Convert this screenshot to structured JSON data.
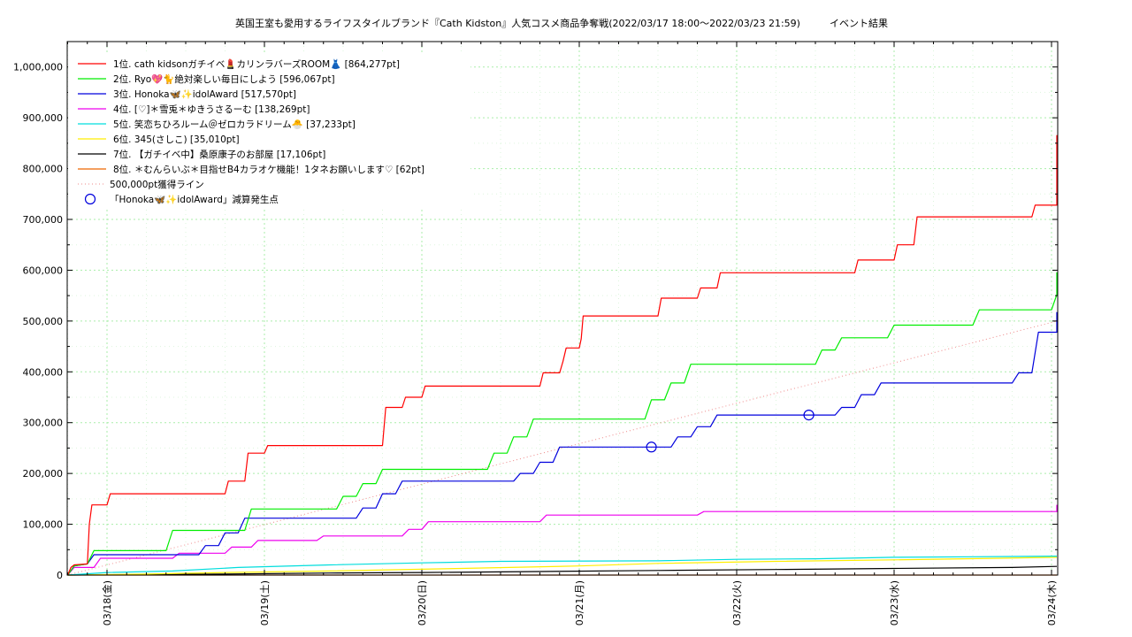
{
  "chart_data": {
    "type": "line",
    "title": "英国王室も愛用するライフスタイルブランド『Cath Kidston』人気コスメ商品争奪戦(2022/03/17 18:00～2022/03/23 21:59)　　　イベント結果",
    "xlabel": "",
    "ylabel": "",
    "x_unit": "hours since 2022/03/17 18:00",
    "xlim": [
      0,
      150
    ],
    "ylim": [
      0,
      1050000
    ],
    "grid": true,
    "legend_position": "top-left",
    "x_ticks": [
      {
        "x": 6,
        "label": "03/18(金)"
      },
      {
        "x": 30,
        "label": "03/19(土)"
      },
      {
        "x": 54,
        "label": "03/20(日)"
      },
      {
        "x": 78,
        "label": "03/21(月)"
      },
      {
        "x": 102,
        "label": "03/22(火)"
      },
      {
        "x": 126,
        "label": "03/23(水)"
      },
      {
        "x": 150,
        "label": "03/24(木)"
      }
    ],
    "y_ticks": [
      {
        "y": 0,
        "label": "0"
      },
      {
        "y": 100000,
        "label": "100,000"
      },
      {
        "y": 200000,
        "label": "200,000"
      },
      {
        "y": 300000,
        "label": "300,000"
      },
      {
        "y": 400000,
        "label": "400,000"
      },
      {
        "y": 500000,
        "label": "500,000"
      },
      {
        "y": 600000,
        "label": "600,000"
      },
      {
        "y": 700000,
        "label": "700,000"
      },
      {
        "y": 800000,
        "label": "800,000"
      },
      {
        "y": 900000,
        "label": "900,000"
      },
      {
        "y": 1000000,
        "label": "1,000,000"
      }
    ],
    "series": [
      {
        "name": "1位. cath kidsonガチイベ💄カリンラバーズROOM👗 [864,277pt]",
        "color": "#ff0000",
        "points": [
          [
            0,
            0
          ],
          [
            0.5,
            15000
          ],
          [
            1,
            20000
          ],
          [
            3,
            22000
          ],
          [
            3.3,
            100000
          ],
          [
            3.7,
            138000
          ],
          [
            6,
            138000
          ],
          [
            6.5,
            160000
          ],
          [
            24,
            160000
          ],
          [
            24.5,
            185000
          ],
          [
            27,
            185000
          ],
          [
            27.5,
            240000
          ],
          [
            30,
            240000
          ],
          [
            30.5,
            255000
          ],
          [
            48,
            255000
          ],
          [
            48.5,
            330000
          ],
          [
            51,
            330000
          ],
          [
            51.5,
            350000
          ],
          [
            54,
            350000
          ],
          [
            54.5,
            372000
          ],
          [
            72,
            372000
          ],
          [
            72.5,
            398000
          ],
          [
            75,
            398000
          ],
          [
            75.5,
            420000
          ],
          [
            76,
            447000
          ],
          [
            78,
            447000
          ],
          [
            78.3,
            465000
          ],
          [
            78.6,
            510000
          ],
          [
            90,
            510000
          ],
          [
            90.5,
            545000
          ],
          [
            96,
            545000
          ],
          [
            96.5,
            565000
          ],
          [
            99,
            565000
          ],
          [
            99.5,
            595000
          ],
          [
            120,
            595000
          ],
          [
            120.5,
            620000
          ],
          [
            126,
            620000
          ],
          [
            126.5,
            650000
          ],
          [
            129,
            650000
          ],
          [
            129.5,
            705000
          ],
          [
            147,
            705000
          ],
          [
            147.5,
            728000
          ],
          [
            152,
            728000
          ],
          [
            152.5,
            752000
          ],
          [
            156,
            752000
          ],
          [
            156.5,
            810000
          ],
          [
            157,
            865000
          ],
          [
            159,
            864277
          ]
        ]
      },
      {
        "name": "2位. Ryo💖🐈絶対楽しい毎日にしよう [596,067pt]",
        "color": "#00ee00",
        "points": [
          [
            0,
            0
          ],
          [
            1,
            18000
          ],
          [
            3,
            22000
          ],
          [
            4,
            48000
          ],
          [
            15,
            48000
          ],
          [
            16,
            88000
          ],
          [
            27,
            88000
          ],
          [
            28,
            130000
          ],
          [
            41,
            130000
          ],
          [
            42,
            155000
          ],
          [
            44,
            155000
          ],
          [
            45,
            180000
          ],
          [
            47,
            180000
          ],
          [
            48,
            208000
          ],
          [
            64,
            208000
          ],
          [
            65,
            240000
          ],
          [
            67,
            240000
          ],
          [
            68,
            272000
          ],
          [
            70,
            272000
          ],
          [
            71,
            307000
          ],
          [
            88,
            307000
          ],
          [
            89,
            345000
          ],
          [
            91,
            345000
          ],
          [
            92,
            378000
          ],
          [
            94,
            378000
          ],
          [
            95,
            415000
          ],
          [
            114,
            415000
          ],
          [
            115,
            443000
          ],
          [
            117,
            443000
          ],
          [
            118,
            467000
          ],
          [
            125,
            467000
          ],
          [
            126,
            492000
          ],
          [
            138,
            492000
          ],
          [
            139,
            522000
          ],
          [
            150,
            522000
          ],
          [
            151,
            552000
          ],
          [
            154,
            552000
          ],
          [
            155,
            596067
          ],
          [
            159,
            596067
          ]
        ]
      },
      {
        "name": "3位. Honoka🦋✨idolAward [517,570pt]",
        "color": "#0000dd",
        "points": [
          [
            0,
            0
          ],
          [
            1,
            18000
          ],
          [
            3,
            22000
          ],
          [
            4,
            40000
          ],
          [
            20,
            40000
          ],
          [
            21,
            58000
          ],
          [
            23,
            58000
          ],
          [
            24,
            83000
          ],
          [
            26,
            83000
          ],
          [
            27,
            112000
          ],
          [
            44,
            112000
          ],
          [
            45,
            132000
          ],
          [
            47,
            132000
          ],
          [
            48,
            160000
          ],
          [
            50,
            160000
          ],
          [
            51,
            185000
          ],
          [
            68,
            185000
          ],
          [
            69,
            200000
          ],
          [
            71,
            200000
          ],
          [
            72,
            222000
          ],
          [
            74,
            222000
          ],
          [
            75,
            252000
          ],
          [
            92,
            252000
          ],
          [
            93,
            272000
          ],
          [
            95,
            272000
          ],
          [
            96,
            292000
          ],
          [
            98,
            292000
          ],
          [
            99,
            315000
          ],
          [
            117,
            315000
          ],
          [
            118,
            330000
          ],
          [
            120,
            330000
          ],
          [
            121,
            355000
          ],
          [
            123,
            355000
          ],
          [
            124,
            378000
          ],
          [
            144,
            378000
          ],
          [
            145,
            398000
          ],
          [
            147,
            398000
          ],
          [
            148,
            478000
          ],
          [
            151,
            478000
          ],
          [
            152,
            517570
          ],
          [
            159,
            517570
          ]
        ]
      },
      {
        "name": "4位. [♡]＊雪兎＊ゆきうさるーむ [138,269pt]",
        "color": "#ee00ee",
        "points": [
          [
            0,
            0
          ],
          [
            1,
            15000
          ],
          [
            4,
            15000
          ],
          [
            5,
            33000
          ],
          [
            16,
            33000
          ],
          [
            17,
            43000
          ],
          [
            24,
            43000
          ],
          [
            25,
            55000
          ],
          [
            28,
            55000
          ],
          [
            29,
            68000
          ],
          [
            38,
            68000
          ],
          [
            39,
            77000
          ],
          [
            51,
            77000
          ],
          [
            52,
            90000
          ],
          [
            54,
            90000
          ],
          [
            55,
            105000
          ],
          [
            72,
            105000
          ],
          [
            73,
            118000
          ],
          [
            96,
            118000
          ],
          [
            97,
            125000
          ],
          [
            156,
            125000
          ],
          [
            157,
            138269
          ],
          [
            159,
            138269
          ]
        ]
      },
      {
        "name": "5位. 笑恋ちひろルーム＠ゼロカラドリーム🐣 [37,233pt]",
        "color": "#00dddd",
        "points": [
          [
            0,
            0
          ],
          [
            6,
            5000
          ],
          [
            16,
            8000
          ],
          [
            26,
            15000
          ],
          [
            40,
            20000
          ],
          [
            54,
            24000
          ],
          [
            66,
            27000
          ],
          [
            90,
            28000
          ],
          [
            102,
            31000
          ],
          [
            114,
            32000
          ],
          [
            126,
            35000
          ],
          [
            138,
            36000
          ],
          [
            159,
            37233
          ]
        ]
      },
      {
        "name": "6位. 345(さしこ) [35,010pt]",
        "color": "#ffee00",
        "points": [
          [
            0,
            0
          ],
          [
            12,
            2000
          ],
          [
            24,
            5000
          ],
          [
            40,
            8000
          ],
          [
            60,
            13000
          ],
          [
            78,
            18000
          ],
          [
            90,
            23000
          ],
          [
            108,
            27000
          ],
          [
            126,
            30000
          ],
          [
            142,
            33000
          ],
          [
            159,
            35010
          ]
        ]
      },
      {
        "name": "7位. 【ガチイベ中】桑原康子のお部屋 [17,106pt]",
        "color": "#000000",
        "points": [
          [
            0,
            0
          ],
          [
            12,
            1000
          ],
          [
            24,
            2000
          ],
          [
            40,
            4000
          ],
          [
            54,
            5000
          ],
          [
            72,
            7000
          ],
          [
            90,
            9000
          ],
          [
            108,
            11000
          ],
          [
            126,
            13000
          ],
          [
            144,
            15000
          ],
          [
            159,
            17106
          ]
        ]
      },
      {
        "name": "8位. ＊むんらいぶ＊目指せB4カラオケ機能！1タネお願いします♡ [62pt]",
        "color": "#ee6600",
        "points": [
          [
            0,
            0
          ],
          [
            159,
            62
          ]
        ]
      }
    ],
    "reference_line": {
      "name": "500,000pt獲得ライン",
      "color": "#ee8888",
      "points": [
        [
          0,
          0
        ],
        [
          152,
          500000
        ]
      ]
    },
    "markers": {
      "name": "「Honoka🦋✨idolAward」減算発生点",
      "color": "#0000dd",
      "points": [
        [
          89,
          252000
        ],
        [
          113,
          315000
        ]
      ]
    }
  }
}
